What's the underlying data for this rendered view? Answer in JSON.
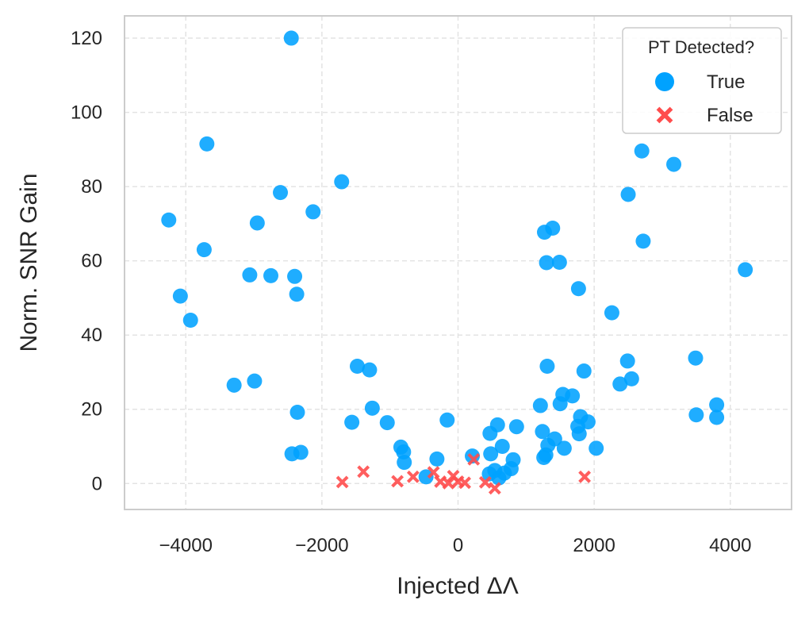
{
  "chart_data": {
    "type": "scatter",
    "title": "",
    "xlabel": "Injected ΔΛ",
    "ylabel": "Norm. SNR Gain",
    "xlim": [
      -4900,
      4900
    ],
    "ylim": [
      -7,
      126
    ],
    "xticks": [
      -4000,
      -2000,
      0,
      2000,
      4000
    ],
    "xtick_labels": [
      "−4000",
      "−2000",
      "0",
      "2000",
      "4000"
    ],
    "yticks": [
      0,
      20,
      40,
      60,
      80,
      100,
      120
    ],
    "ytick_labels": [
      "0",
      "20",
      "40",
      "60",
      "80",
      "100",
      "120"
    ],
    "grid": true,
    "legend": {
      "title": "PT Detected?",
      "placement": "top-right",
      "entries": [
        "True",
        "False"
      ]
    },
    "series": [
      {
        "name": "True",
        "marker": "circle",
        "color": "#00A2FF",
        "points": [
          [
            -4250,
            71
          ],
          [
            -4080,
            50.5
          ],
          [
            -3930,
            44
          ],
          [
            -3730,
            63
          ],
          [
            -3690,
            91.5
          ],
          [
            -3290,
            26.5
          ],
          [
            -3060,
            56.2
          ],
          [
            -2990,
            27.6
          ],
          [
            -2950,
            70.2
          ],
          [
            -2750,
            56
          ],
          [
            -2610,
            78.4
          ],
          [
            -2450,
            120
          ],
          [
            -2440,
            8
          ],
          [
            -2400,
            55.8
          ],
          [
            -2370,
            51
          ],
          [
            -2360,
            19.2
          ],
          [
            -2310,
            8.4
          ],
          [
            -2130,
            73.2
          ],
          [
            -1710,
            81.3
          ],
          [
            -1560,
            16.5
          ],
          [
            -1480,
            31.6
          ],
          [
            -1300,
            30.6
          ],
          [
            -1260,
            20.3
          ],
          [
            -1040,
            16.4
          ],
          [
            -840,
            9.8
          ],
          [
            -800,
            8.5
          ],
          [
            -790,
            5.7
          ],
          [
            -470,
            1.8
          ],
          [
            -310,
            6.6
          ],
          [
            -160,
            17.1
          ],
          [
            210,
            7.4
          ],
          [
            460,
            2.6
          ],
          [
            470,
            13.5
          ],
          [
            480,
            8
          ],
          [
            540,
            3.5
          ],
          [
            580,
            15.8
          ],
          [
            600,
            1.5
          ],
          [
            650,
            10
          ],
          [
            680,
            2.8
          ],
          [
            780,
            4
          ],
          [
            810,
            6.4
          ],
          [
            860,
            15.3
          ],
          [
            1210,
            21
          ],
          [
            1240,
            14
          ],
          [
            1260,
            7
          ],
          [
            1270,
            67.7
          ],
          [
            1290,
            7.7
          ],
          [
            1300,
            59.5
          ],
          [
            1310,
            31.6
          ],
          [
            1320,
            10.3
          ],
          [
            1390,
            68.8
          ],
          [
            1420,
            12
          ],
          [
            1490,
            59.6
          ],
          [
            1500,
            21.5
          ],
          [
            1540,
            24
          ],
          [
            1560,
            9.5
          ],
          [
            1680,
            23.6
          ],
          [
            1760,
            15.4
          ],
          [
            1770,
            52.5
          ],
          [
            1780,
            13.4
          ],
          [
            1800,
            18
          ],
          [
            1850,
            30.3
          ],
          [
            1910,
            16.6
          ],
          [
            2030,
            9.5
          ],
          [
            2260,
            46
          ],
          [
            2380,
            26.8
          ],
          [
            2490,
            33
          ],
          [
            2500,
            77.9
          ],
          [
            2550,
            28.2
          ],
          [
            2700,
            89.6
          ],
          [
            2720,
            65.3
          ],
          [
            3170,
            86
          ],
          [
            3490,
            33.8
          ],
          [
            3500,
            18.5
          ],
          [
            3800,
            21.2
          ],
          [
            3800,
            17.8
          ],
          [
            4220,
            57.6
          ]
        ]
      },
      {
        "name": "False",
        "marker": "x",
        "color": "#FF4D4D",
        "points": [
          [
            -1700,
            0.4
          ],
          [
            -1390,
            3.2
          ],
          [
            -890,
            0.6
          ],
          [
            -660,
            1.8
          ],
          [
            -360,
            3
          ],
          [
            -260,
            0.5
          ],
          [
            -140,
            0.1
          ],
          [
            -70,
            2
          ],
          [
            0,
            0.5
          ],
          [
            100,
            0.2
          ],
          [
            230,
            6.5
          ],
          [
            400,
            0.3
          ],
          [
            540,
            -1.3
          ],
          [
            1860,
            1.8
          ]
        ]
      }
    ]
  }
}
